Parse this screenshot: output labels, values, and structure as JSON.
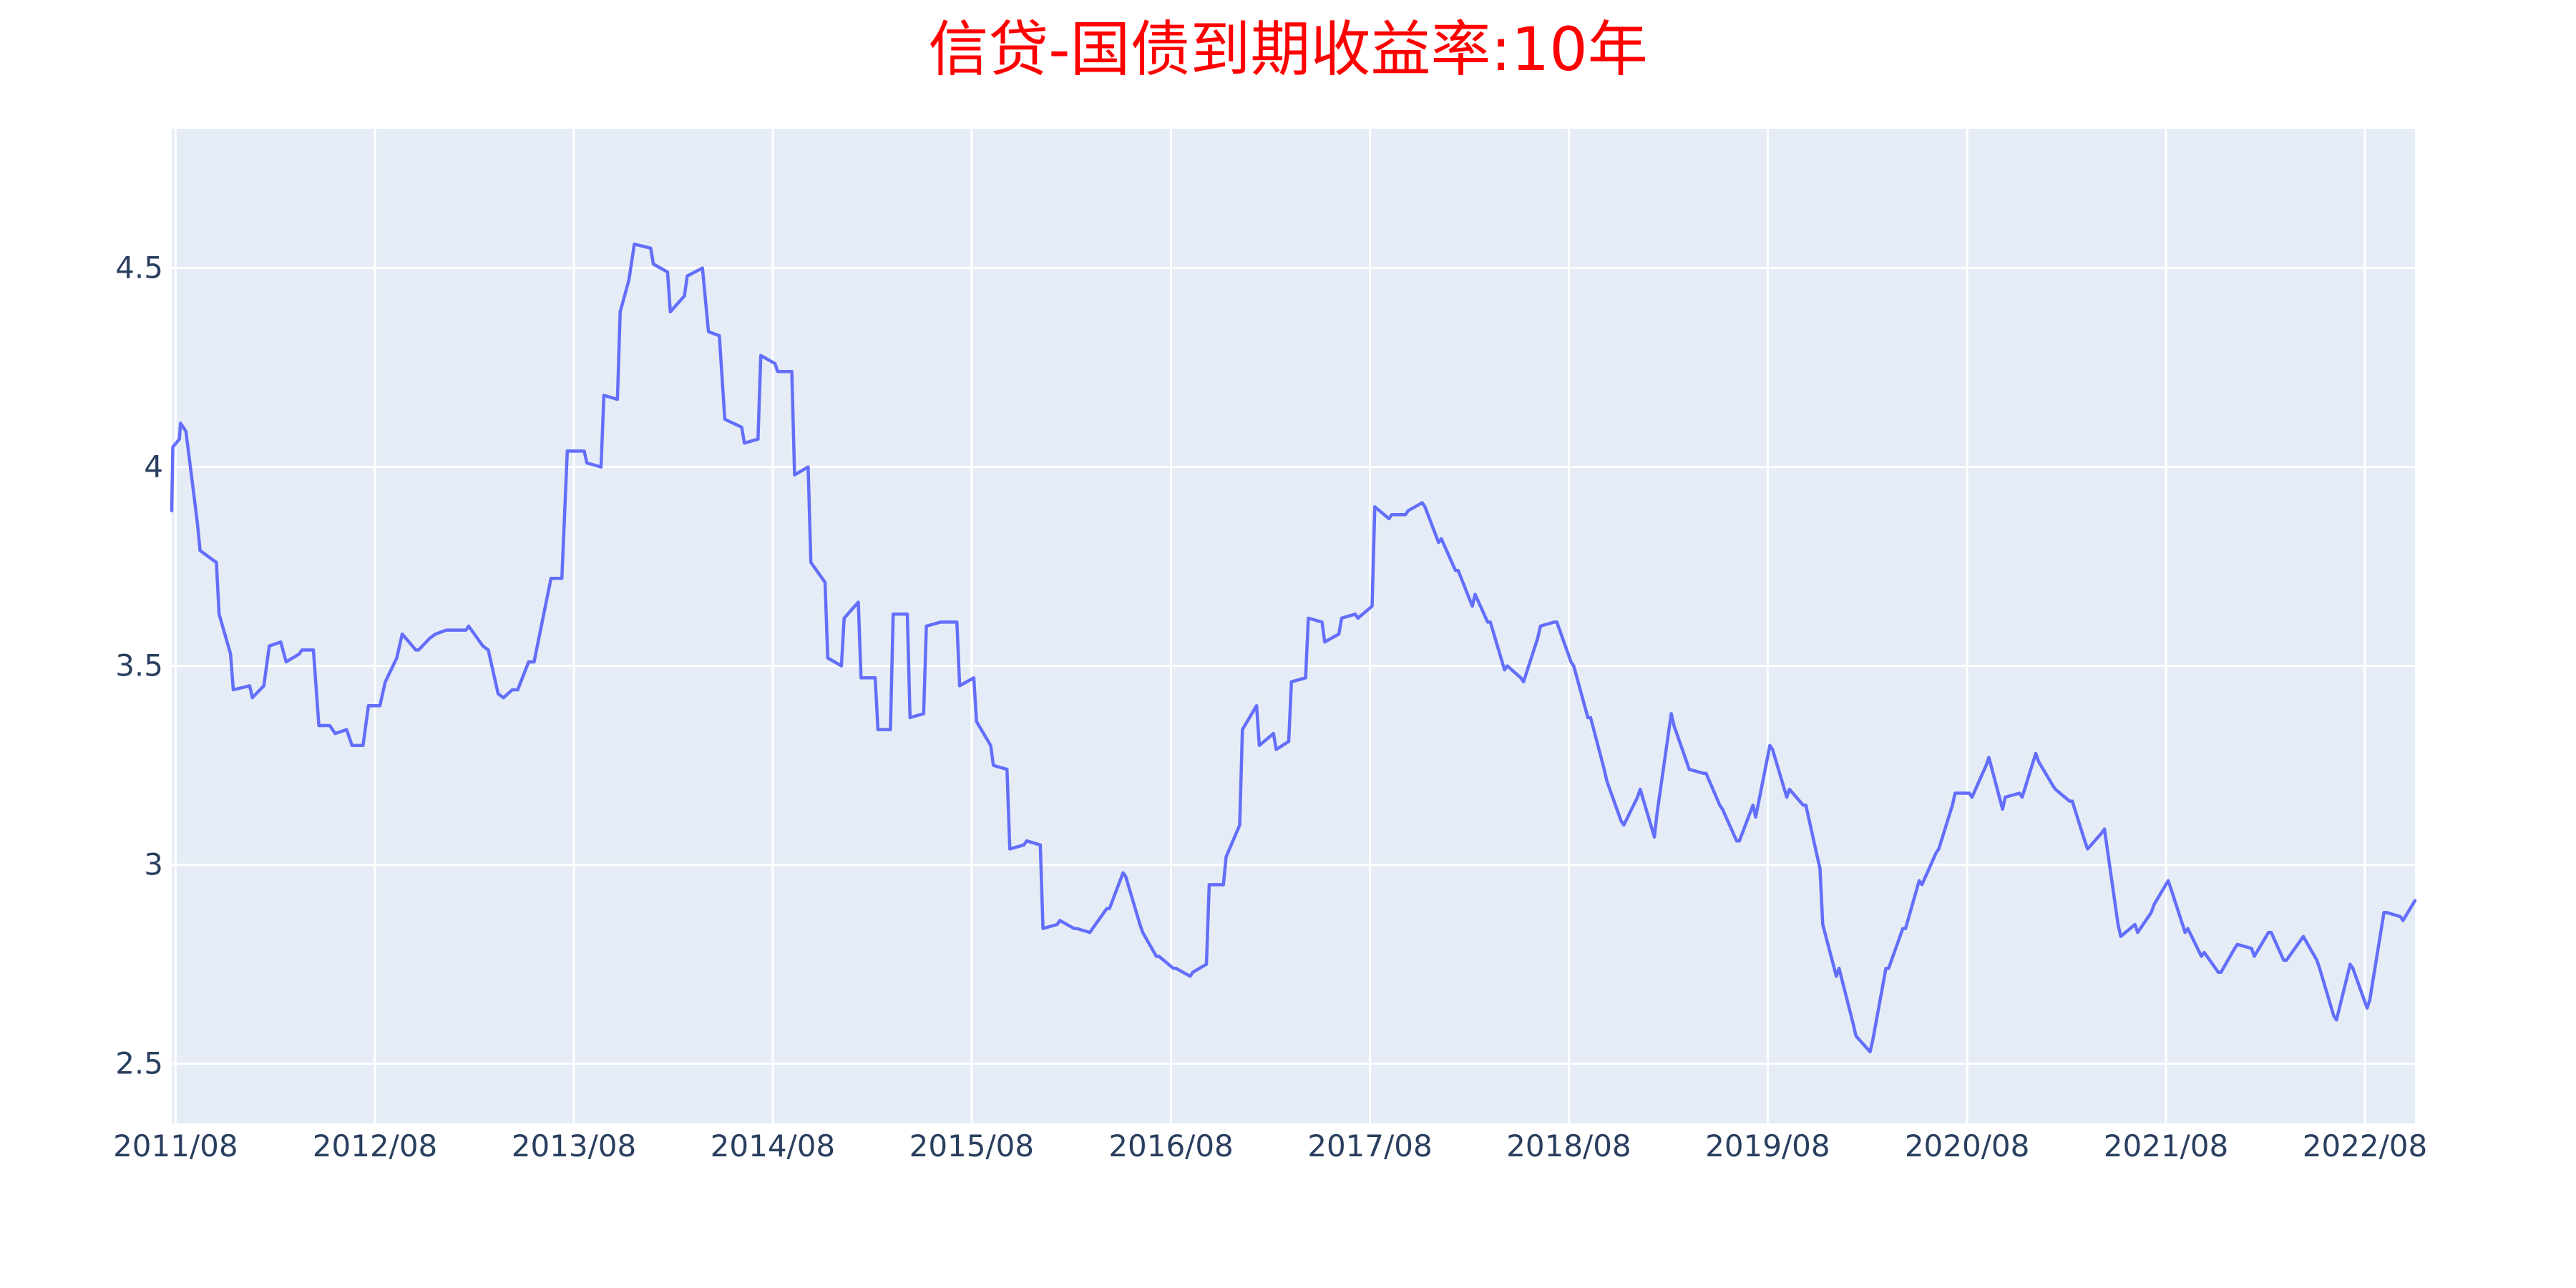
{
  "chart_data": {
    "type": "line",
    "title": "信贷-国债到期收益率:10年",
    "xlabel": "",
    "ylabel": "",
    "grid": true,
    "legend": "none",
    "plot_background": "#e5ecf6",
    "line_color": "#636efa",
    "title_color": "#ff0000",
    "xlim": [
      "2011-07-25",
      "2022-11-01"
    ],
    "ylim": [
      2.35,
      4.85
    ],
    "x_ticks": [
      "2011/08",
      "2012/08",
      "2013/08",
      "2014/08",
      "2015/08",
      "2016/08",
      "2017/08",
      "2018/08",
      "2019/08",
      "2020/08",
      "2021/08",
      "2022/08"
    ],
    "y_ticks": [
      "2.5",
      "3",
      "3.5",
      "4",
      "4.5"
    ],
    "series": [
      {
        "x": [
          "2011-07-25",
          "2011-07-27",
          "2011-08-08",
          "2011-08-10",
          "2011-08-20",
          "2011-09-10",
          "2011-09-15",
          "2011-10-15",
          "2011-10-20",
          "2011-11-10",
          "2011-11-15",
          "2011-12-15",
          "2011-12-20",
          "2012-01-10",
          "2012-01-20",
          "2012-02-10",
          "2012-02-20",
          "2012-03-15",
          "2012-03-20",
          "2012-04-10",
          "2012-04-20",
          "2012-05-10",
          "2012-05-20",
          "2012-06-10",
          "2012-06-20",
          "2012-07-10",
          "2012-07-20",
          "2012-08-10",
          "2012-08-20",
          "2012-09-10",
          "2012-09-20",
          "2012-10-15",
          "2012-10-20",
          "2012-11-10",
          "2012-11-20",
          "2012-12-10",
          "2012-12-20",
          "2013-01-15",
          "2013-01-20",
          "2013-02-15",
          "2013-02-25",
          "2013-03-15",
          "2013-03-25",
          "2013-04-10",
          "2013-04-20",
          "2013-05-10",
          "2013-05-20",
          "2013-06-20",
          "2013-07-10",
          "2013-07-20",
          "2013-08-20",
          "2013-08-25",
          "2013-09-20",
          "2013-09-25",
          "2013-10-20",
          "2013-10-25",
          "2013-11-10",
          "2013-11-20",
          "2013-12-20",
          "2013-12-25",
          "2014-01-20",
          "2014-01-25",
          "2014-02-20",
          "2014-02-25",
          "2014-03-25",
          "2014-04-05",
          "2014-04-25",
          "2014-05-05",
          "2014-06-05",
          "2014-06-10",
          "2014-07-05",
          "2014-07-10",
          "2014-08-05",
          "2014-08-10",
          "2014-09-05",
          "2014-09-10",
          "2014-10-05",
          "2014-10-10",
          "2014-11-05",
          "2014-11-10",
          "2014-12-05",
          "2014-12-10",
          "2015-01-05",
          "2015-01-10",
          "2015-02-05",
          "2015-02-10",
          "2015-03-05",
          "2015-03-10",
          "2015-04-05",
          "2015-04-10",
          "2015-05-05",
          "2015-05-10",
          "2015-06-05",
          "2015-06-10",
          "2015-07-05",
          "2015-07-10",
          "2015-08-05",
          "2015-08-10",
          "2015-09-05",
          "2015-09-10",
          "2015-10-05",
          "2015-10-10",
          "2015-11-05",
          "2015-11-10",
          "2015-12-05",
          "2015-12-10",
          "2016-01-05",
          "2016-01-10",
          "2016-02-05",
          "2016-02-10",
          "2016-03-05",
          "2016-03-10",
          "2016-04-05",
          "2016-04-10",
          "2016-05-05",
          "2016-05-10",
          "2016-06-05",
          "2016-06-10",
          "2016-07-05",
          "2016-07-10",
          "2016-08-05",
          "2016-08-10",
          "2016-09-05",
          "2016-09-10",
          "2016-10-05",
          "2016-10-10",
          "2016-11-05",
          "2016-11-10",
          "2016-12-05",
          "2016-12-10",
          "2017-01-05",
          "2017-01-10",
          "2017-02-05",
          "2017-02-10",
          "2017-03-05",
          "2017-03-10",
          "2017-04-05",
          "2017-04-10",
          "2017-05-05",
          "2017-05-10",
          "2017-06-05",
          "2017-06-10",
          "2017-07-05",
          "2017-07-10",
          "2017-08-05",
          "2017-08-10",
          "2017-09-05",
          "2017-09-10",
          "2017-10-05",
          "2017-10-10",
          "2017-11-05",
          "2017-11-10",
          "2017-12-05",
          "2017-12-10",
          "2018-01-05",
          "2018-01-10",
          "2018-02-05",
          "2018-02-10",
          "2018-03-05",
          "2018-03-10",
          "2018-04-05",
          "2018-04-10",
          "2018-05-05",
          "2018-05-10",
          "2018-06-05",
          "2018-06-10",
          "2018-07-05",
          "2018-07-10",
          "2018-08-05",
          "2018-08-10",
          "2018-09-05",
          "2018-09-10",
          "2018-10-05",
          "2018-10-10",
          "2018-11-05",
          "2018-11-10",
          "2018-12-05",
          "2018-12-10",
          "2019-01-05",
          "2019-01-10",
          "2019-02-05",
          "2019-02-10",
          "2019-03-05",
          "2019-03-10",
          "2019-04-05",
          "2019-04-10",
          "2019-05-05",
          "2019-05-10",
          "2019-06-05",
          "2019-06-10",
          "2019-07-05",
          "2019-07-10",
          "2019-08-05",
          "2019-08-10",
          "2019-09-05",
          "2019-09-10",
          "2019-10-05",
          "2019-10-10",
          "2019-11-05",
          "2019-11-10",
          "2019-12-05",
          "2019-12-10",
          "2020-01-05",
          "2020-01-10",
          "2020-02-05",
          "2020-02-10",
          "2020-03-05",
          "2020-03-10",
          "2020-04-05",
          "2020-04-10",
          "2020-05-05",
          "2020-05-10",
          "2020-06-05",
          "2020-06-10",
          "2020-07-05",
          "2020-07-10",
          "2020-08-05",
          "2020-08-10",
          "2020-09-05",
          "2020-09-10",
          "2020-10-05",
          "2020-10-10",
          "2020-11-05",
          "2020-11-10",
          "2020-12-05",
          "2020-12-10",
          "2021-01-05",
          "2021-01-10",
          "2021-02-05",
          "2021-02-10",
          "2021-03-05",
          "2021-03-10",
          "2021-04-05",
          "2021-04-10",
          "2021-05-05",
          "2021-05-10",
          "2021-06-05",
          "2021-06-10",
          "2021-07-05",
          "2021-07-10",
          "2021-08-05",
          "2021-08-10",
          "2021-09-05",
          "2021-09-10",
          "2021-10-05",
          "2021-10-10",
          "2021-11-05",
          "2021-11-10",
          "2021-12-05",
          "2021-12-10",
          "2022-01-05",
          "2022-01-10",
          "2022-02-05",
          "2022-02-10",
          "2022-03-05",
          "2022-03-10",
          "2022-04-05",
          "2022-04-10",
          "2022-05-05",
          "2022-05-10",
          "2022-06-05",
          "2022-06-10",
          "2022-07-05",
          "2022-07-10",
          "2022-08-05",
          "2022-08-10",
          "2022-09-05",
          "2022-09-10",
          "2022-10-05",
          "2022-10-10",
          "2022-11-01"
        ],
        "y": [
          3.89,
          4.05,
          4.07,
          4.11,
          4.09,
          3.86,
          3.79,
          3.76,
          3.63,
          3.53,
          3.44,
          3.45,
          3.42,
          3.45,
          3.55,
          3.56,
          3.51,
          3.53,
          3.54,
          3.54,
          3.35,
          3.35,
          3.33,
          3.34,
          3.3,
          3.3,
          3.4,
          3.4,
          3.46,
          3.52,
          3.58,
          3.54,
          3.54,
          3.57,
          3.58,
          3.59,
          3.59,
          3.59,
          3.6,
          3.55,
          3.54,
          3.43,
          3.42,
          3.44,
          3.44,
          3.51,
          3.51,
          3.72,
          3.72,
          4.04,
          4.04,
          4.01,
          4.0,
          4.18,
          4.17,
          4.39,
          4.47,
          4.56,
          4.55,
          4.51,
          4.49,
          4.39,
          4.43,
          4.48,
          4.5,
          4.34,
          4.33,
          4.12,
          4.1,
          4.06,
          4.07,
          4.28,
          4.26,
          4.24,
          4.24,
          3.98,
          4.0,
          3.76,
          3.71,
          3.52,
          3.5,
          3.62,
          3.66,
          3.47,
          3.47,
          3.34,
          3.34,
          3.63,
          3.63,
          3.37,
          3.38,
          3.6,
          3.61,
          3.61,
          3.61,
          3.45,
          3.47,
          3.36,
          3.3,
          3.25,
          3.24,
          3.04,
          3.05,
          3.06,
          3.05,
          2.84,
          2.85,
          2.86,
          2.84,
          2.84,
          2.83,
          2.84,
          2.89,
          2.89,
          2.98,
          2.97,
          2.85,
          2.83,
          2.77,
          2.77,
          2.74,
          2.74,
          2.72,
          2.73,
          2.75,
          2.95,
          2.95,
          3.02,
          3.1,
          3.34,
          3.4,
          3.3,
          3.33,
          3.29,
          3.31,
          3.46,
          3.47,
          3.62,
          3.61,
          3.56,
          3.58,
          3.62,
          3.63,
          3.62,
          3.65,
          3.9,
          3.87,
          3.88,
          3.88,
          3.89,
          3.91,
          3.9,
          3.81,
          3.82,
          3.74,
          3.74,
          3.65,
          3.68,
          3.61,
          3.61,
          3.49,
          3.5,
          3.47,
          3.46,
          3.57,
          3.6,
          3.61,
          3.61,
          3.51,
          3.5,
          3.37,
          3.37,
          3.24,
          3.21,
          3.11,
          3.1,
          3.17,
          3.19,
          3.07,
          3.13,
          3.38,
          3.35,
          3.26,
          3.24,
          3.23,
          3.23,
          3.15,
          3.14,
          3.06,
          3.06,
          3.15,
          3.12,
          3.3,
          3.29,
          3.17,
          3.19,
          3.15,
          3.15,
          2.99,
          2.85,
          2.72,
          2.74,
          2.6,
          2.57,
          2.53,
          2.56,
          2.74,
          2.74,
          2.84,
          2.84,
          2.96,
          2.95,
          3.03,
          3.04,
          3.15,
          3.18,
          3.18,
          3.17,
          3.25,
          3.27,
          3.14,
          3.17,
          3.18,
          3.17,
          3.28,
          3.26,
          3.2,
          3.19,
          3.16,
          3.16,
          3.06,
          3.04,
          3.08,
          3.09,
          2.85,
          2.82,
          2.85,
          2.83,
          2.88,
          2.9,
          2.96,
          2.94,
          2.83,
          2.84,
          2.77,
          2.78,
          2.73,
          2.73,
          2.79,
          2.8,
          2.79,
          2.77,
          2.83,
          2.83,
          2.76,
          2.76,
          2.81,
          2.82,
          2.76,
          2.74,
          2.62,
          2.61,
          2.75,
          2.74,
          2.64,
          2.66,
          2.88,
          2.88,
          2.87,
          2.86,
          2.91
        ]
      }
    ]
  }
}
